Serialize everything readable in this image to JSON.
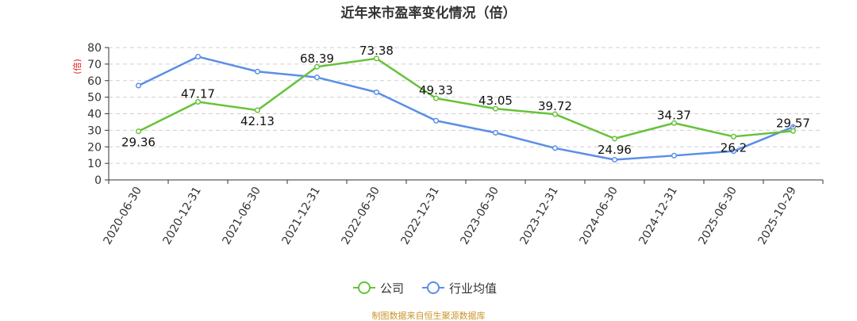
{
  "chart_data": {
    "type": "line",
    "title": "近年来市盈率变化情况（倍）",
    "ylabel": "(倍)",
    "xlabel": "",
    "ylim": [
      0,
      80
    ],
    "yticks": [
      0,
      10,
      20,
      30,
      40,
      50,
      60,
      70,
      80
    ],
    "grid": true,
    "legend_position": "bottom",
    "categories": [
      "2020-06-30",
      "2020-12-31",
      "2021-06-30",
      "2021-12-31",
      "2022-06-30",
      "2022-12-31",
      "2023-06-30",
      "2023-12-31",
      "2024-06-30",
      "2024-12-31",
      "2025-06-30",
      "2025-10-29"
    ],
    "series": [
      {
        "name": "公司",
        "color": "#67c23a",
        "values": [
          29.36,
          47.17,
          42.13,
          68.39,
          73.38,
          49.33,
          43.05,
          39.72,
          24.96,
          34.37,
          26.2,
          29.57
        ],
        "labels": [
          "29.36",
          "47.17",
          "42.13",
          "68.39",
          "73.38",
          "49.33",
          "43.05",
          "39.72",
          "24.96",
          "34.37",
          "26.2",
          "29.57"
        ]
      },
      {
        "name": "行业均值",
        "color": "#5b8ee6",
        "values": [
          57,
          74.5,
          65.5,
          62,
          53,
          35.8,
          28.5,
          19.2,
          12.2,
          14.7,
          17.4,
          32
        ]
      }
    ],
    "source": "制图数据来自恒生聚源数据库"
  }
}
